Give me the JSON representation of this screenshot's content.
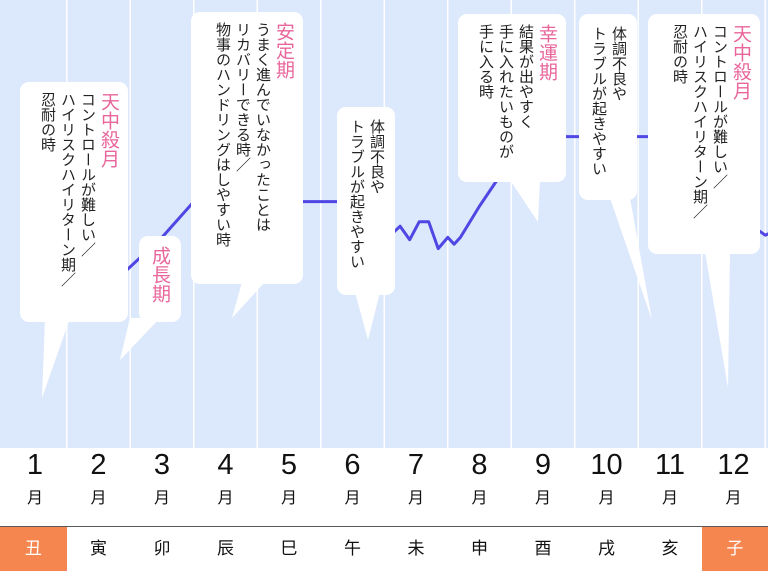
{
  "chart_data": {
    "type": "line",
    "x": [
      1,
      1.45,
      1.6,
      1.75,
      1.9,
      2.05,
      2.2,
      3.0,
      3.5,
      4.0,
      4.5,
      5.0,
      5.5,
      6.05,
      6.15,
      6.3,
      6.45,
      6.6,
      6.75,
      6.9,
      7.05,
      7.2,
      7.35,
      7.5,
      7.6,
      7.7,
      8.0,
      8.5,
      9.0,
      9.5,
      10.0,
      10.5,
      11.0,
      11.45,
      11.6,
      11.75,
      11.9,
      12.05,
      12.2,
      12.5,
      12.8,
      13.0,
      13.2,
      13.35,
      13.5,
      13.7,
      13.85,
      13.9
    ],
    "y": [
      4.0,
      3.75,
      3.95,
      3.65,
      3.95,
      3.7,
      3.65,
      4.7,
      5.5,
      5.5,
      5.5,
      5.5,
      5.5,
      5.5,
      5.1,
      4.65,
      5.25,
      4.75,
      4.95,
      4.65,
      5.05,
      5.05,
      4.45,
      4.7,
      4.55,
      4.7,
      5.4,
      6.45,
      6.95,
      6.95,
      6.95,
      6.95,
      6.95,
      6.95,
      6.5,
      5.2,
      5.25,
      4.85,
      5.05,
      4.75,
      4.95,
      4.05,
      3.85,
      4.05,
      3.75,
      3.95,
      3.7,
      3.8
    ],
    "ylim": [
      0,
      10
    ],
    "grid": true
  },
  "months": [
    {
      "num": "1",
      "suffix": "月",
      "zodiac": "丑",
      "highlight": true
    },
    {
      "num": "2",
      "suffix": "月",
      "zodiac": "寅",
      "highlight": false
    },
    {
      "num": "3",
      "suffix": "月",
      "zodiac": "卯",
      "highlight": false
    },
    {
      "num": "4",
      "suffix": "月",
      "zodiac": "辰",
      "highlight": false
    },
    {
      "num": "5",
      "suffix": "月",
      "zodiac": "巳",
      "highlight": false
    },
    {
      "num": "6",
      "suffix": "月",
      "zodiac": "午",
      "highlight": false
    },
    {
      "num": "7",
      "suffix": "月",
      "zodiac": "未",
      "highlight": false
    },
    {
      "num": "8",
      "suffix": "月",
      "zodiac": "申",
      "highlight": false
    },
    {
      "num": "9",
      "suffix": "月",
      "zodiac": "酉",
      "highlight": false
    },
    {
      "num": "10",
      "suffix": "月",
      "zodiac": "戌",
      "highlight": false
    },
    {
      "num": "11",
      "suffix": "月",
      "zodiac": "亥",
      "highlight": false
    },
    {
      "num": "12",
      "suffix": "月",
      "zodiac": "子",
      "highlight": true
    }
  ],
  "annotations": [
    {
      "title": "天中殺月",
      "lines": [
        "コントロールが難しい／",
        "ハイリスクハイリターン期／",
        "忍耐の時"
      ]
    },
    {
      "title": "成長期",
      "lines": []
    },
    {
      "title": "安定期",
      "lines": [
        "うまく進んでいなかったことは",
        "リカバリーできる時／",
        "物事のハンドリングはしやすい時"
      ]
    },
    {
      "title": "",
      "lines": [
        "体調不良や",
        "トラブルが起きやすい"
      ]
    },
    {
      "title": "幸運期",
      "lines": [
        "結果が出やすく",
        "手に入れたいものが",
        "手に入る時"
      ]
    },
    {
      "title": "",
      "lines": [
        "体調不良や",
        "トラブルが起きやすい"
      ]
    },
    {
      "title": "天中殺月",
      "lines": [
        "コントロールが難しい／",
        "ハイリスクハイリターン期／",
        "忍耐の時"
      ]
    }
  ],
  "colors": {
    "plot_bg": "#dce8fb",
    "grid": "#ffffff",
    "line": "#5046e4",
    "title_pink": "#e8669b",
    "highlight_cell": "#f5864f",
    "zodiac_bg": "#ffffff",
    "zodiac_border": "#222222"
  }
}
